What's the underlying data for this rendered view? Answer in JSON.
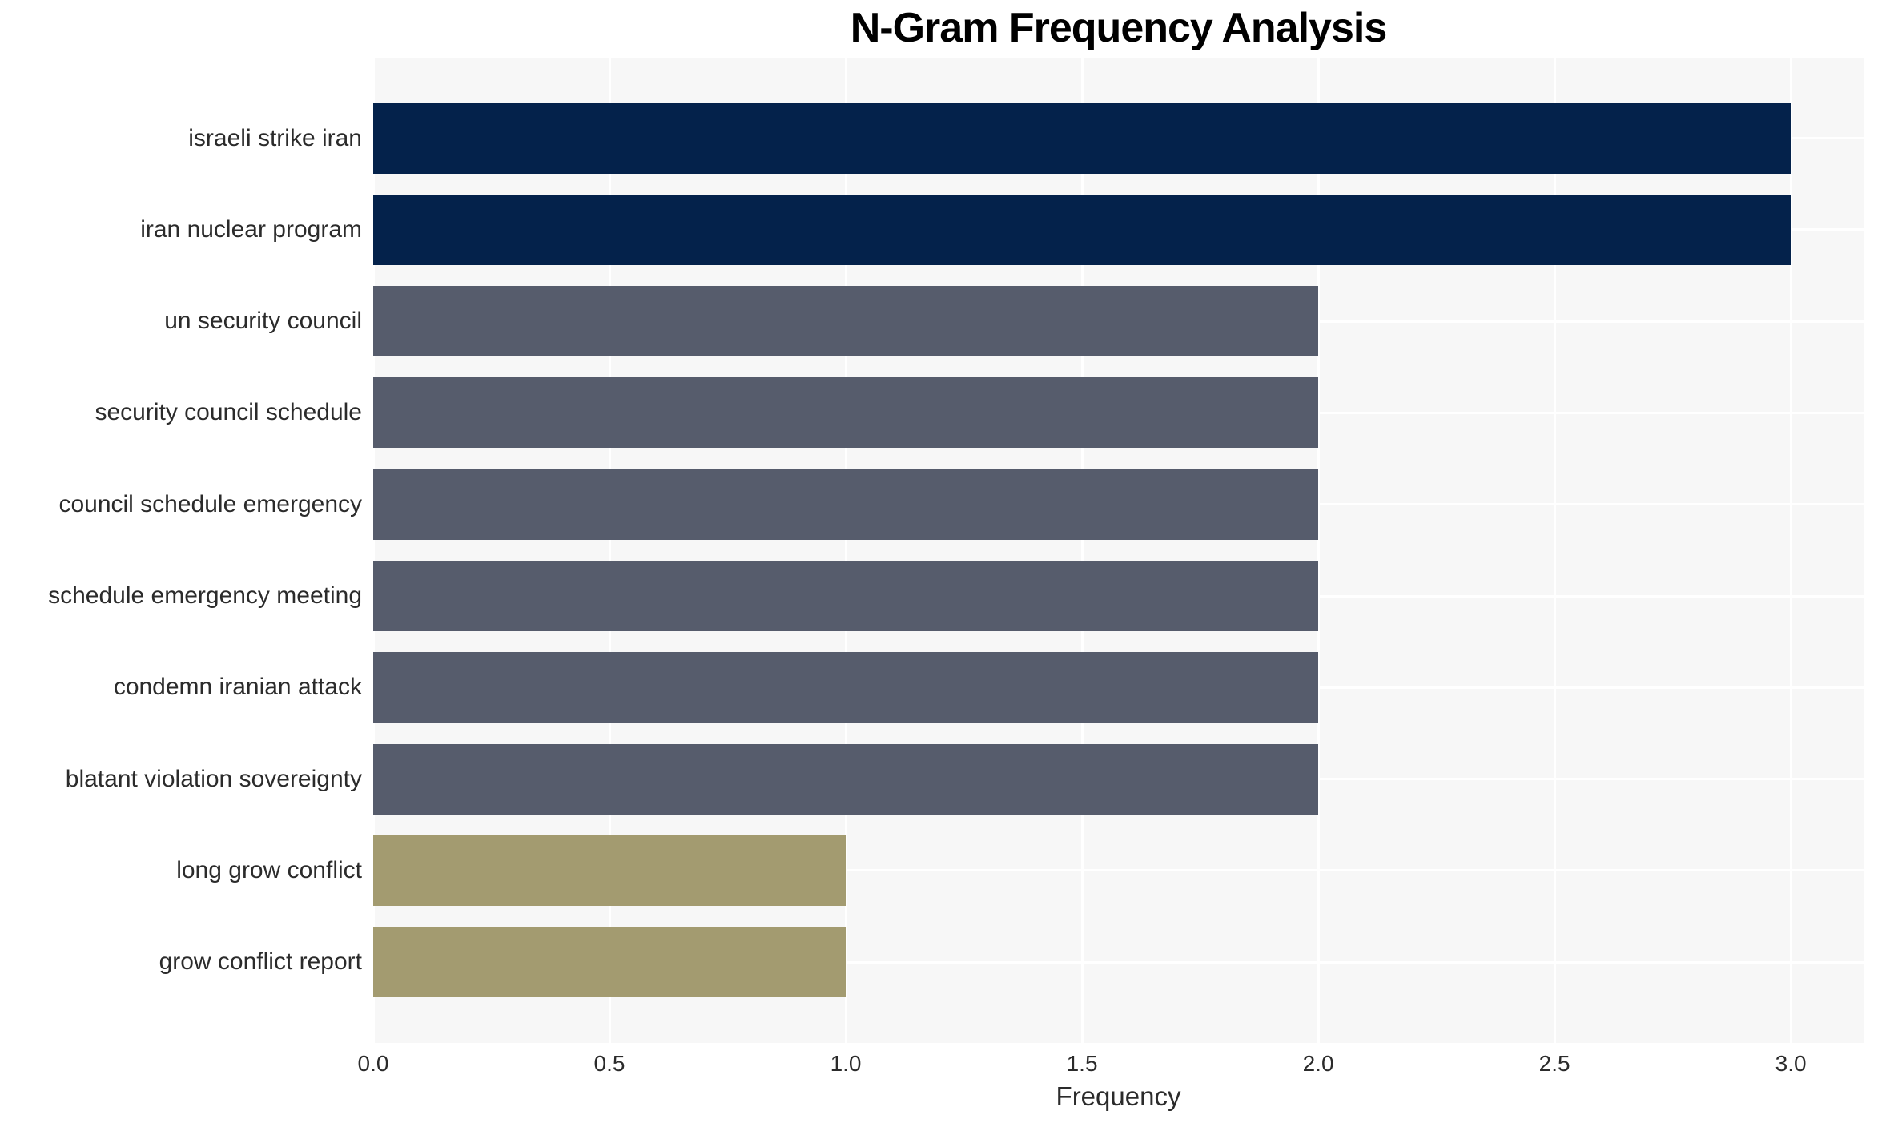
{
  "chart_data": {
    "type": "bar",
    "orientation": "horizontal",
    "title": "N-Gram Frequency Analysis",
    "xlabel": "Frequency",
    "ylabel": "",
    "categories": [
      "israeli strike iran",
      "iran nuclear program",
      "un security council",
      "security council schedule",
      "council schedule emergency",
      "schedule emergency meeting",
      "condemn iranian attack",
      "blatant violation sovereignty",
      "long grow conflict",
      "grow conflict report"
    ],
    "values": [
      3,
      3,
      2,
      2,
      2,
      2,
      2,
      2,
      1,
      1
    ],
    "bar_colors": [
      "#04224b",
      "#04224b",
      "#565c6c",
      "#565c6c",
      "#565c6c",
      "#565c6c",
      "#565c6c",
      "#565c6c",
      "#a39b70",
      "#a39b70"
    ],
    "xticks": [
      0.0,
      0.5,
      1.0,
      1.5,
      2.0,
      2.5,
      3.0
    ],
    "xtick_labels": [
      "0.0",
      "0.5",
      "1.0",
      "1.5",
      "2.0",
      "2.5",
      "3.0"
    ],
    "xlim": [
      0,
      3.154
    ],
    "grid": true,
    "legend": false,
    "plot_background": "#f7f7f7",
    "grid_color": "#ffffff",
    "title_color": "#000000",
    "tick_color": "#2b2b2b"
  }
}
